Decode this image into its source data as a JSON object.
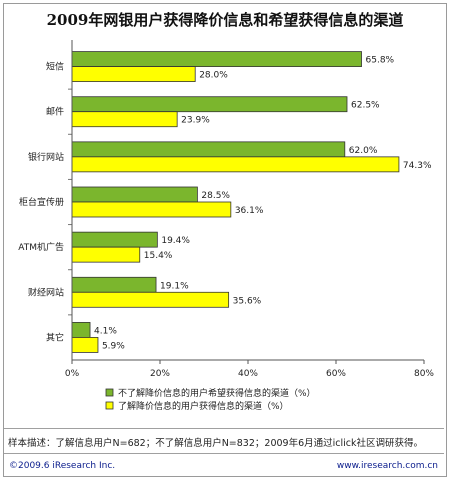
{
  "title": "2009年网银用户获得降价信息和希望获得信息的渠道",
  "chart_data": {
    "type": "bar",
    "orientation": "horizontal",
    "categories": [
      "短信",
      "邮件",
      "银行网站",
      "柜台宣传册",
      "ATM机广告",
      "财经网站",
      "其它"
    ],
    "series": [
      {
        "name": "不了解降价信息的用户希望获得信息的渠道（%）",
        "color": "#7bb62d",
        "values": [
          65.8,
          62.5,
          62.0,
          28.5,
          19.4,
          19.1,
          4.1
        ],
        "labels": [
          "65.8%",
          "62.5%",
          "62.0%",
          "28.5%",
          "19.4%",
          "19.1%",
          "4.1%"
        ]
      },
      {
        "name": "了解降价信息的用户获得信息的渠道（%）",
        "color": "#ffff00",
        "values": [
          28.0,
          23.9,
          74.3,
          36.1,
          15.4,
          35.6,
          5.9
        ],
        "labels": [
          "28.0%",
          "23.9%",
          "74.3%",
          "36.1%",
          "15.4%",
          "35.6%",
          "5.9%"
        ]
      }
    ],
    "xlim": [
      0,
      80
    ],
    "xticks": [
      "0%",
      "20%",
      "40%",
      "60%",
      "80%"
    ],
    "grid": false,
    "legend_position": "bottom"
  },
  "note": "样本描述：了解信息用户N=682；不了解信息用户N=832；2009年6月通过iclick社区调研获得。",
  "footer": {
    "left": "©2009.6 iResearch Inc.",
    "right": "www.iresearch.com.cn"
  }
}
